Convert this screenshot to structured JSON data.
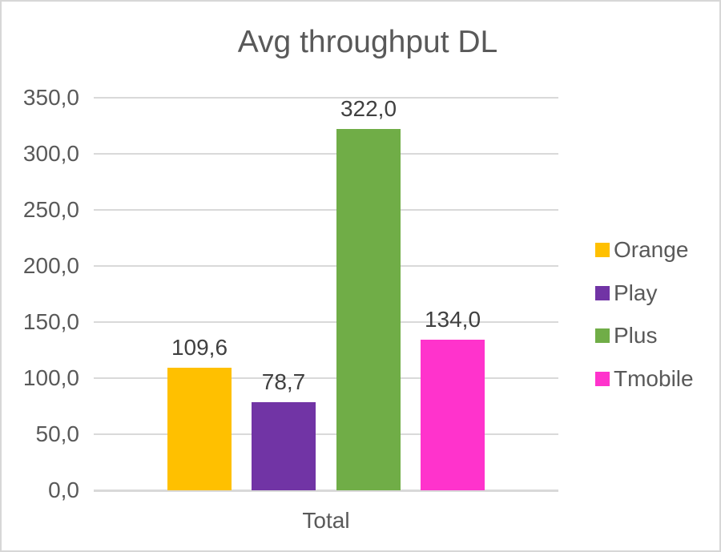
{
  "chart_data": {
    "type": "bar",
    "title": "Avg throughput DL",
    "categories": [
      "Total"
    ],
    "series": [
      {
        "name": "Orange",
        "values": [
          109.6
        ],
        "label": "109,6",
        "color": "#FFC000"
      },
      {
        "name": "Play",
        "values": [
          78.7
        ],
        "label": "78,7",
        "color": "#7134A5"
      },
      {
        "name": "Plus",
        "values": [
          322.0
        ],
        "label": "322,0",
        "color": "#70AD47"
      },
      {
        "name": "Tmobile",
        "values": [
          134.0
        ],
        "label": "134,0",
        "color": "#FF33CC"
      }
    ],
    "xlabel": "",
    "ylabel": "",
    "ylim": [
      0,
      350
    ],
    "ytick_step": 50,
    "ytick_labels": [
      "0,0",
      "50,0",
      "100,0",
      "150,0",
      "200,0",
      "250,0",
      "300,0",
      "350,0"
    ],
    "grid": true,
    "legend_position": "right"
  },
  "style": {
    "title_color": "#595959",
    "tick_color": "#595959",
    "data_label_color": "#404040",
    "gridline_color": "#D9D9D9",
    "border_color": "#D7D7D7",
    "background": "#FFFFFF"
  }
}
